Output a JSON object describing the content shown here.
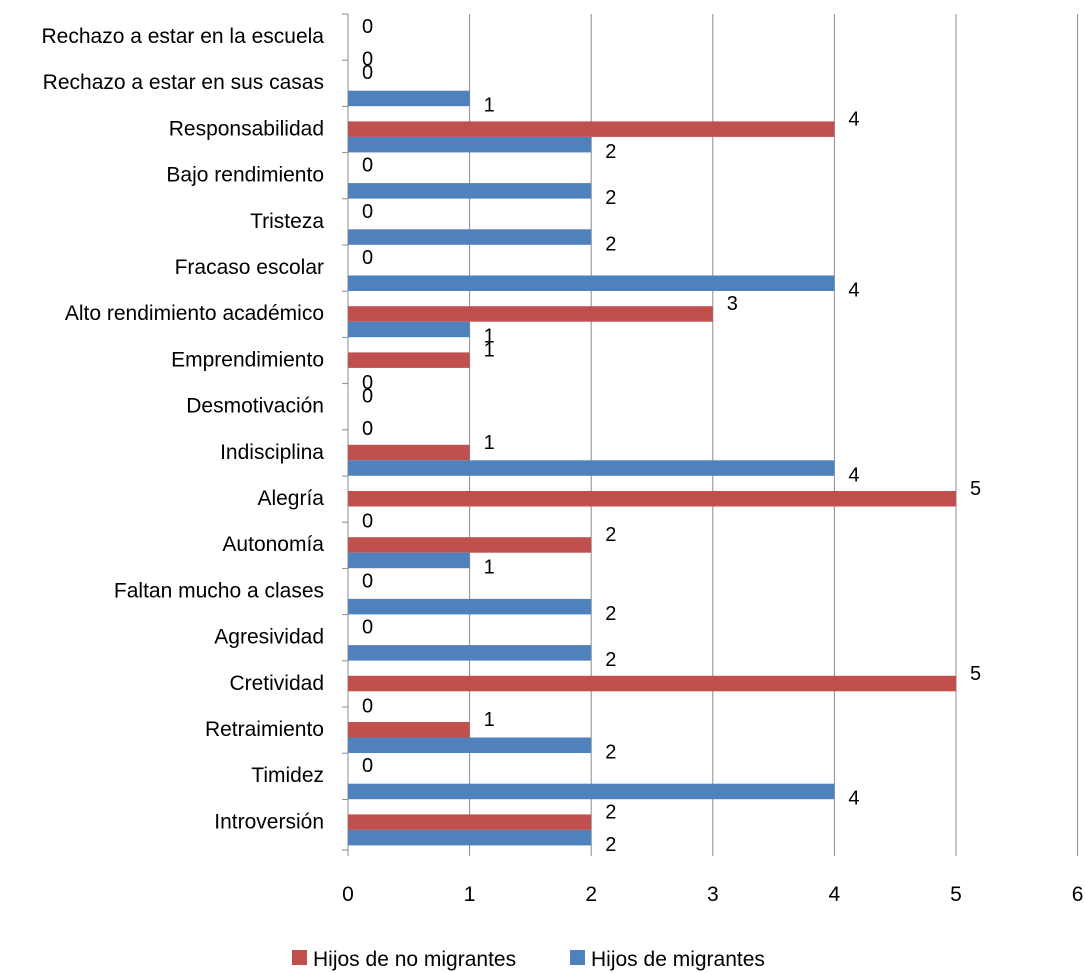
{
  "chart_data": {
    "type": "bar",
    "orientation": "horizontal",
    "categories": [
      "Rechazo a estar en la escuela",
      "Rechazo a estar en sus casas",
      "Responsabilidad",
      "Bajo rendimiento",
      "Tristeza",
      "Fracaso escolar",
      "Alto rendimiento académico",
      "Emprendimiento",
      "Desmotivación",
      "Indisciplina",
      "Alegría",
      "Autonomía",
      "Faltan mucho a clases",
      "Agresividad",
      "Cretividad",
      "Retraimiento",
      "Timidez",
      "Introversión"
    ],
    "series": [
      {
        "name": "Hijos de no migrantes",
        "color": "#c0504d",
        "values": [
          0,
          0,
          4,
          0,
          0,
          0,
          3,
          1,
          0,
          1,
          5,
          2,
          0,
          0,
          5,
          1,
          0,
          2
        ]
      },
      {
        "name": "Hijos de migrantes",
        "color": "#4f81bd",
        "values": [
          0,
          1,
          2,
          2,
          2,
          4,
          1,
          0,
          0,
          4,
          0,
          1,
          2,
          2,
          0,
          2,
          4,
          2
        ]
      }
    ],
    "xlim": [
      0,
      6
    ],
    "xticks": [
      "0",
      "1",
      "2",
      "3",
      "4",
      "5",
      "6"
    ],
    "grid": true,
    "data_labels": true,
    "legend_position": "bottom",
    "title": "",
    "xlabel": "",
    "ylabel": ""
  }
}
